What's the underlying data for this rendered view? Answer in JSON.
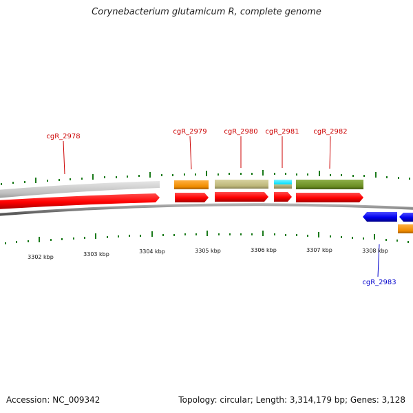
{
  "title": "Corynebacterium glutamicum R, complete genome",
  "footer": {
    "accession": "Accession: NC_009342",
    "summary": "Topology: circular; Length: 3,314,179 bp; Genes: 3,128"
  },
  "colors": {
    "forward_cds": "#ff0000",
    "reverse_cds": "#0000ee",
    "forward_label": "#cc0000",
    "reverse_label": "#0000cc",
    "tick": "#1a7a1a",
    "backbone": "#808080"
  },
  "scale_labels": [
    "3302 kbp",
    "3303 kbp",
    "3304 kbp",
    "3305 kbp",
    "3306 kbp",
    "3307 kbp",
    "3308 kbp"
  ],
  "genes": [
    {
      "label": "cgR_2978",
      "strand": "forward",
      "cog_color": "#c8c8c8"
    },
    {
      "label": "cgR_2979",
      "strand": "forward",
      "cog_color": "#f29000"
    },
    {
      "label": "cgR_2980",
      "strand": "forward",
      "cog_color": "#bdb77a"
    },
    {
      "label": "cgR_2981",
      "strand": "forward",
      "cog_color": "#00e0ff"
    },
    {
      "label": "cgR_2982",
      "strand": "forward",
      "cog_color": "#6b8e23"
    },
    {
      "label": "cgR_2983",
      "strand": "reverse",
      "cog_color": "#f29000"
    }
  ]
}
